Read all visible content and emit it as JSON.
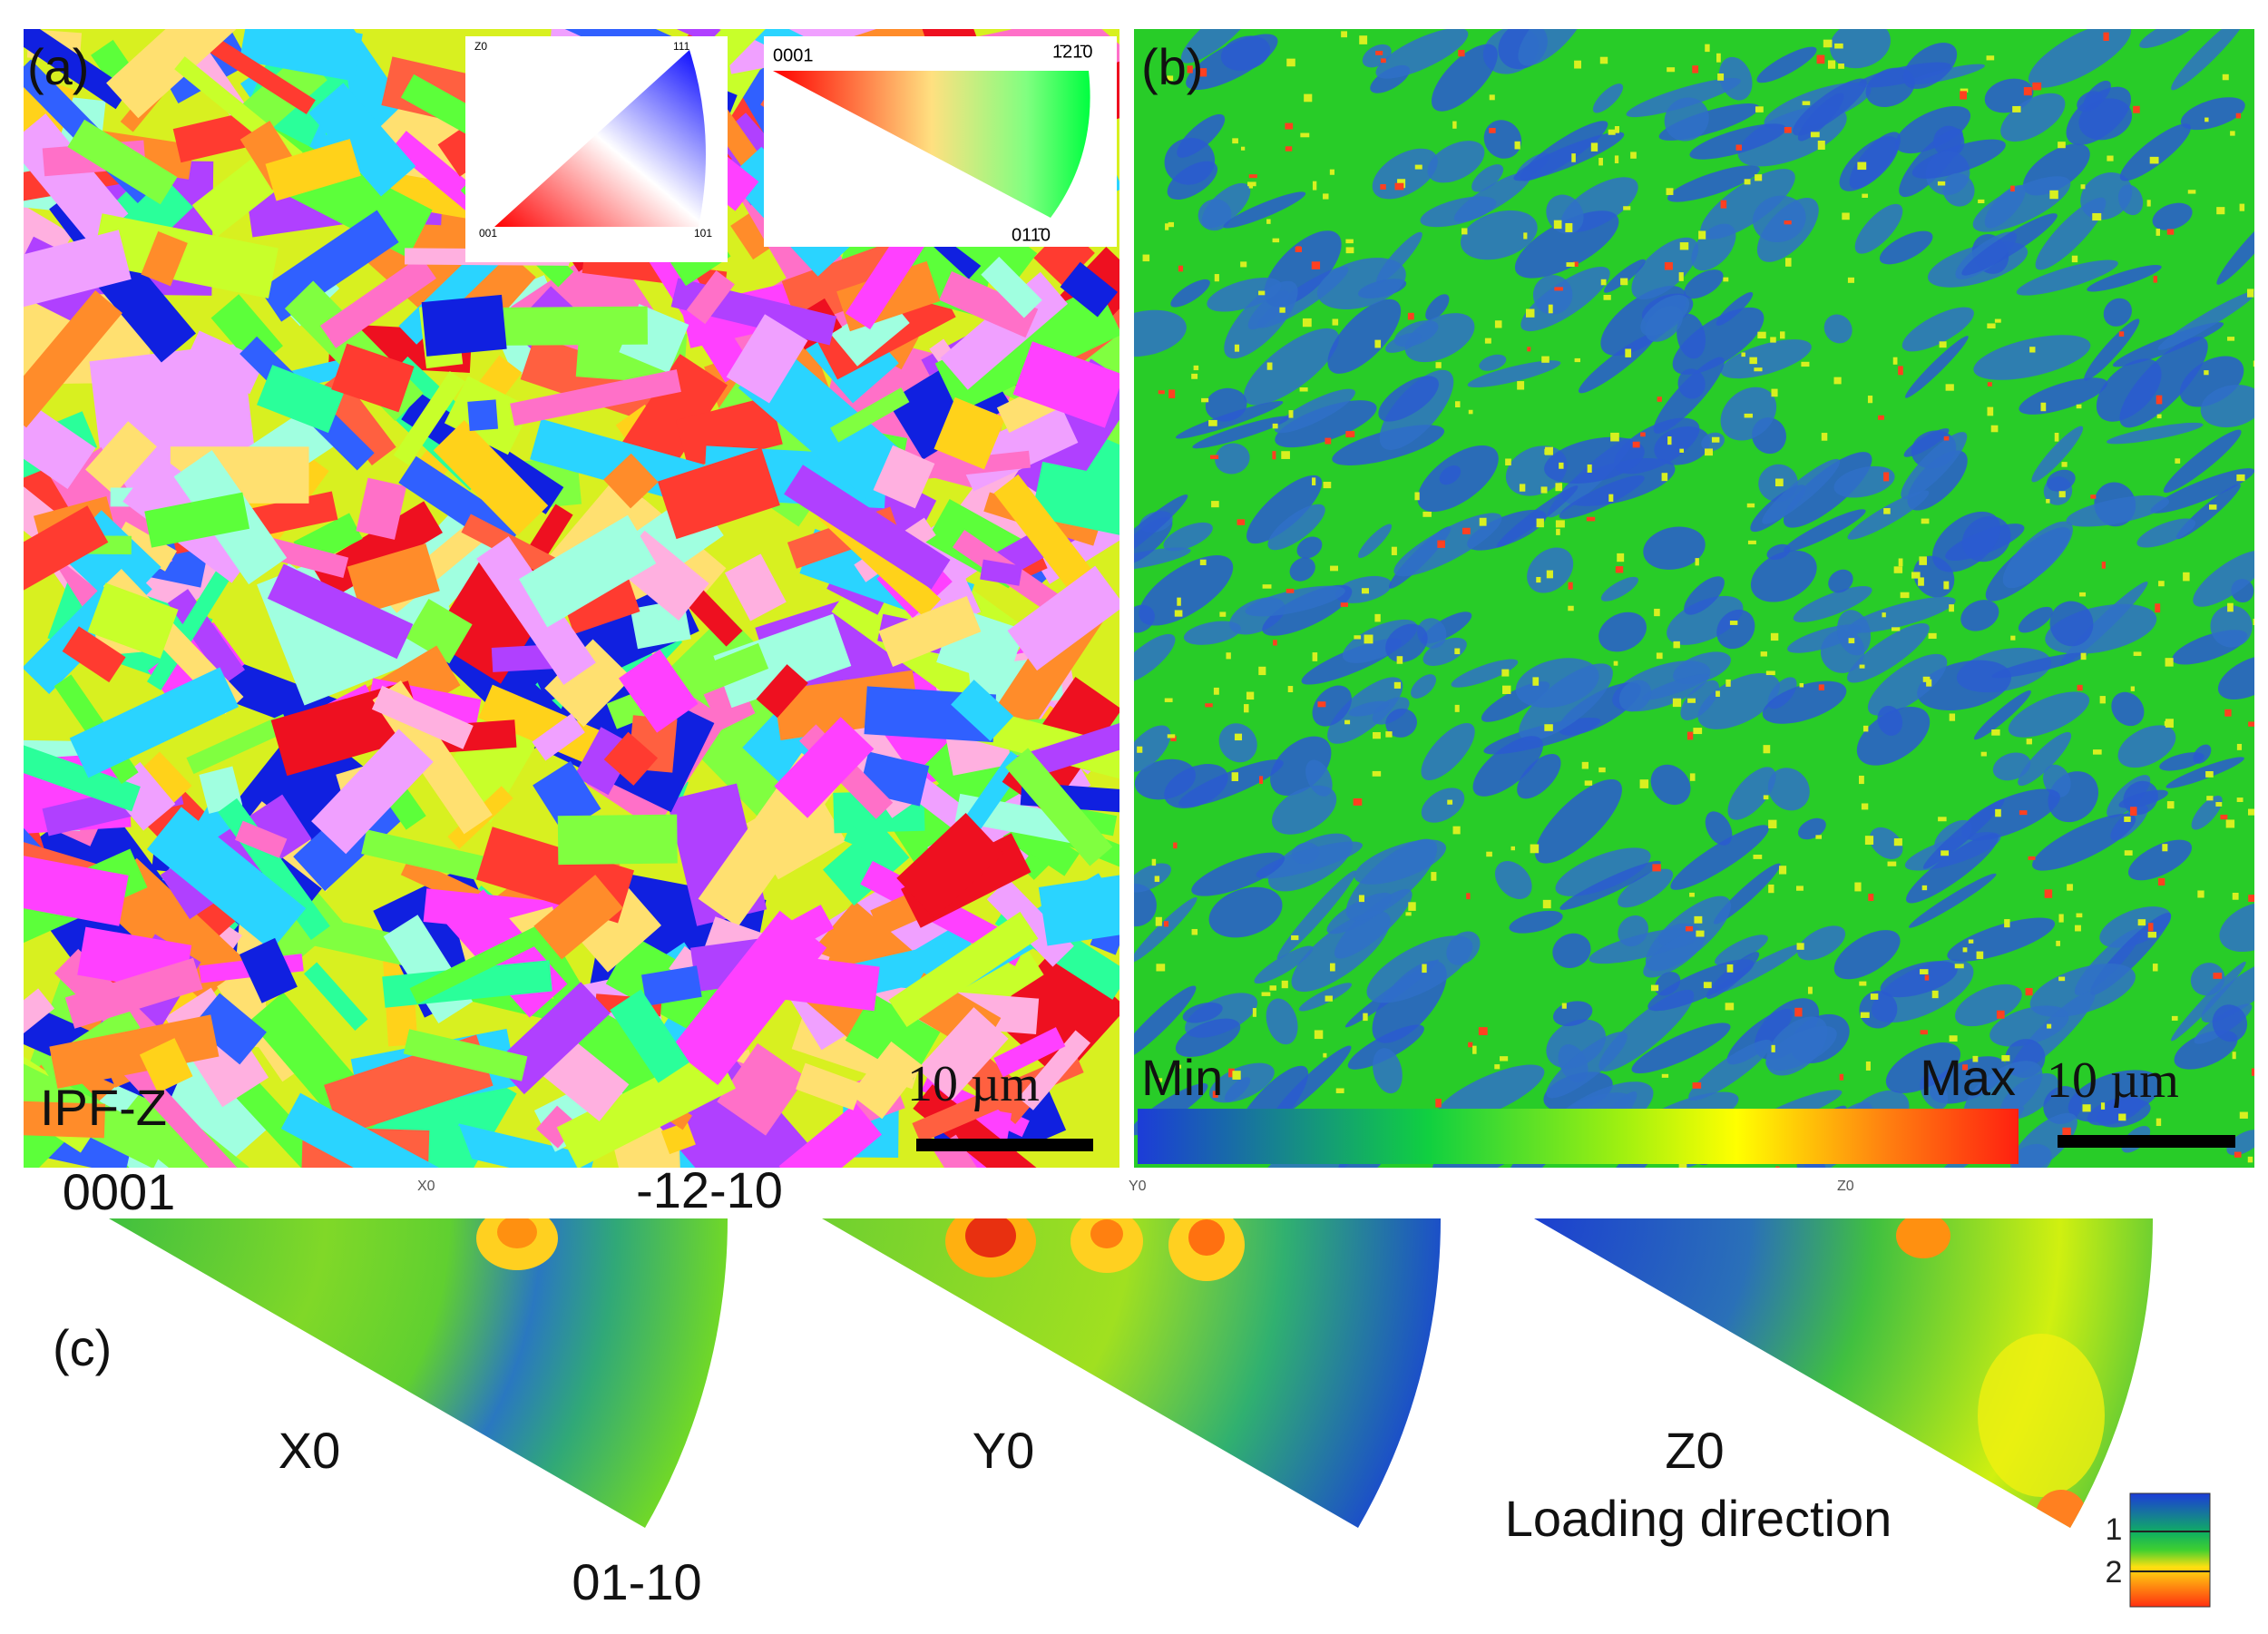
{
  "panel_a": {
    "label": "(a)",
    "map_label": "IPF-Z",
    "scale_bar": "10 µm",
    "cubic_key": {
      "ref": "Z0",
      "top": "111",
      "left": "001",
      "right": "101"
    },
    "hex_key": {
      "left": "0001",
      "right": "1̄21̄0",
      "bottom": "011̄0"
    }
  },
  "panel_b": {
    "label": "(b)",
    "scale_bar": "10 µm",
    "colorbar": {
      "min": "Min",
      "max": "Max"
    }
  },
  "panel_c": {
    "label": "(c)",
    "corners": {
      "apex": "0001",
      "top_right": "-12-10",
      "bottom": "01-10"
    },
    "figures": [
      {
        "tag": "X0",
        "name": "X0"
      },
      {
        "tag": "Y0",
        "name": "Y0"
      },
      {
        "tag": "Z0",
        "name": "Z0",
        "note": "Loading direction"
      }
    ],
    "legend_ticks": [
      "1",
      "2"
    ]
  }
}
